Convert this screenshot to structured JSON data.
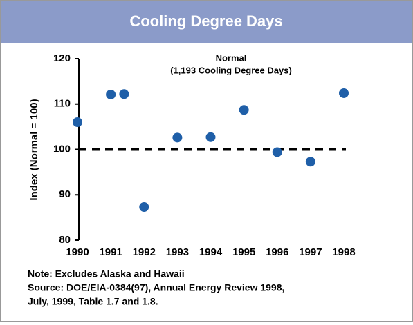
{
  "chart_data": {
    "type": "scatter",
    "title": "Cooling Degree Days",
    "y_label": "Index (Normal = 100)",
    "annotation": [
      "Normal",
      "(1,193 Cooling Degree Days)"
    ],
    "reference_value": 100,
    "notes": [
      "Note: Excludes Alaska and Hawaii",
      "Source: DOE/EIA-0384(97), Annual Energy Review 1998,",
      "July, 1999, Table 1.7 and 1.8."
    ],
    "color": "#1f5fa8",
    "x": [
      1990,
      1991,
      1991.4,
      1992,
      1993,
      1994,
      1995,
      1996,
      1997,
      1998
    ],
    "values": [
      106,
      112.1,
      112.2,
      87.3,
      102.6,
      102.7,
      108.7,
      99.4,
      97.3,
      112.4
    ],
    "xlim": [
      1990,
      1998
    ],
    "xticks": [
      1990,
      1991,
      1992,
      1993,
      1994,
      1995,
      1996,
      1997,
      1998
    ],
    "ylim": [
      80,
      120
    ],
    "yticks": [
      80,
      90,
      100,
      110,
      120
    ]
  }
}
